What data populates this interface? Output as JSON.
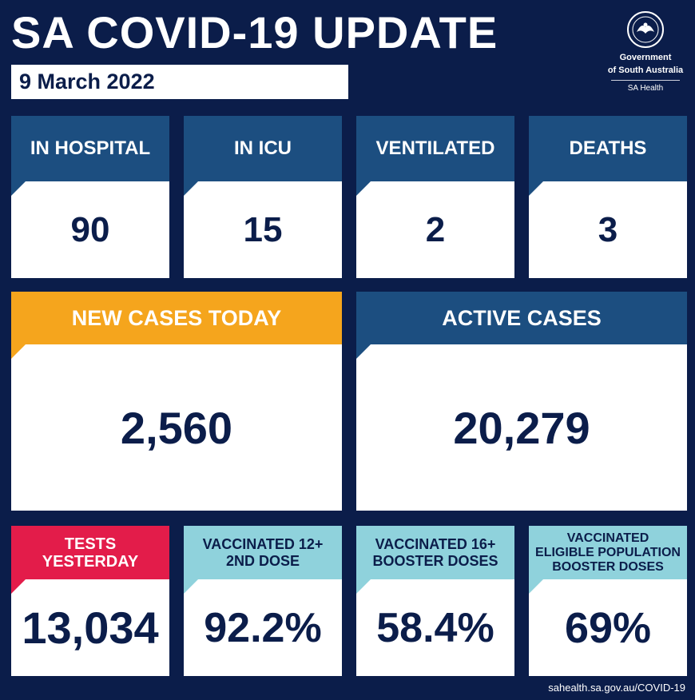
{
  "header": {
    "title": "SA COVID-19 UPDATE",
    "date": "9 March 2022"
  },
  "logo": {
    "line1": "Government",
    "line2": "of South Australia",
    "line3": "SA Health",
    "icon": "piping-shrike-crest-icon"
  },
  "stats_row1": [
    {
      "label": "IN HOSPITAL",
      "value": "90"
    },
    {
      "label": "IN ICU",
      "value": "15"
    },
    {
      "label": "VENTILATED",
      "value": "2"
    },
    {
      "label": "DEATHS",
      "value": "3"
    }
  ],
  "stats_row2": [
    {
      "label": "NEW CASES TODAY",
      "value": "2,560"
    },
    {
      "label": "ACTIVE CASES",
      "value": "20,279"
    }
  ],
  "stats_row3": [
    {
      "label_l1": "TESTS",
      "label_l2": "YESTERDAY",
      "label_l3": "",
      "value": "13,034"
    },
    {
      "label_l1": "VACCINATED 12+",
      "label_l2": "2ND DOSE",
      "label_l3": "",
      "value": "92.2%"
    },
    {
      "label_l1": "VACCINATED 16+",
      "label_l2": "BOOSTER DOSES",
      "label_l3": "",
      "value": "58.4%"
    },
    {
      "label_l1": "VACCINATED",
      "label_l2": "ELIGIBLE POPULATION",
      "label_l3": "BOOSTER DOSES",
      "value": "69%"
    }
  ],
  "footer": {
    "url": "sahealth.sa.gov.au/COVID-19"
  },
  "colors": {
    "background": "#0b1d4a",
    "navy_header": "#1c4e80",
    "orange_header": "#f5a51d",
    "red_header": "#e31c4a",
    "teal_header": "#8fd2dc"
  }
}
